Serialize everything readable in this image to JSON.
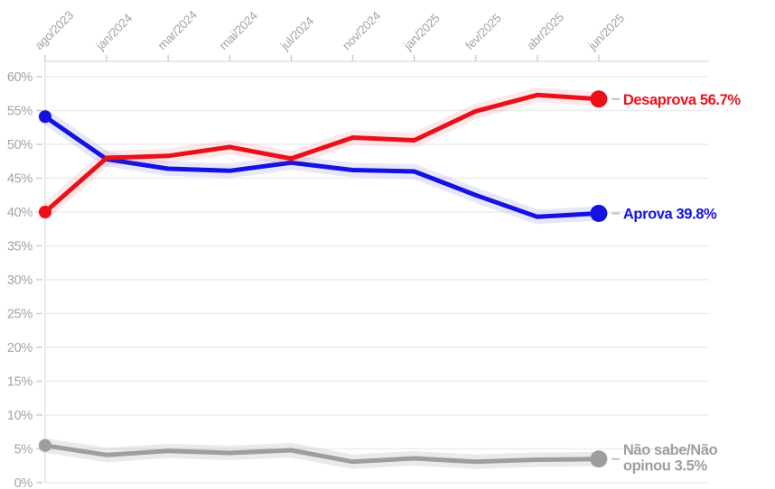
{
  "page": {
    "background": "#ffffff"
  },
  "chart_data": {
    "type": "line",
    "title": "",
    "x_axis_position": "top",
    "grid": true,
    "categories": [
      "ago/2023",
      "jan/2024",
      "mar/2024",
      "mai/2024",
      "jul/2024",
      "nov/2024",
      "jan/2025",
      "fev/2025",
      "abr/2025",
      "jun/2025"
    ],
    "y_axis": {
      "min": 0,
      "max": 60,
      "step": 5,
      "suffix": "%"
    },
    "series": [
      {
        "name": "Não sabe/Não opinou",
        "slug": "nao-sabe-nao-opinou",
        "color": "#9e9e9e",
        "halo_opacity": 0.22,
        "values": [
          5.5,
          4.1,
          4.7,
          4.4,
          4.8,
          3.1,
          3.6,
          3.1,
          3.4,
          3.5
        ],
        "end_value": 3.5,
        "end_label_lines": [
          "Não sabe/Não",
          "opinou 3.5%"
        ]
      },
      {
        "name": "Aprova",
        "slug": "aprova",
        "color": "#1412e2",
        "halo_opacity": 0.1,
        "values": [
          54.1,
          47.8,
          46.4,
          46.1,
          47.3,
          46.2,
          46.0,
          42.5,
          39.3,
          39.8
        ],
        "end_value": 39.8,
        "end_label_lines": [
          "Aprova 39.8%"
        ]
      },
      {
        "name": "Desaprova",
        "slug": "desaprova",
        "color": "#e8111a",
        "halo_opacity": 0.1,
        "values": [
          40.0,
          48.0,
          48.3,
          49.6,
          47.9,
          51.0,
          50.6,
          54.9,
          57.3,
          56.7
        ],
        "end_value": 56.7,
        "end_label_lines": [
          "Desaprova 56.7%"
        ]
      }
    ],
    "legend_position": "right-annotations"
  },
  "styles": {
    "grid_color": "#ebebeb",
    "axis_line_color": "#e2e2e2",
    "tick_mark_color": "#cfcfcf",
    "tick_label_color": "#a4a4a4",
    "connector_color": "#c9c9c9"
  }
}
